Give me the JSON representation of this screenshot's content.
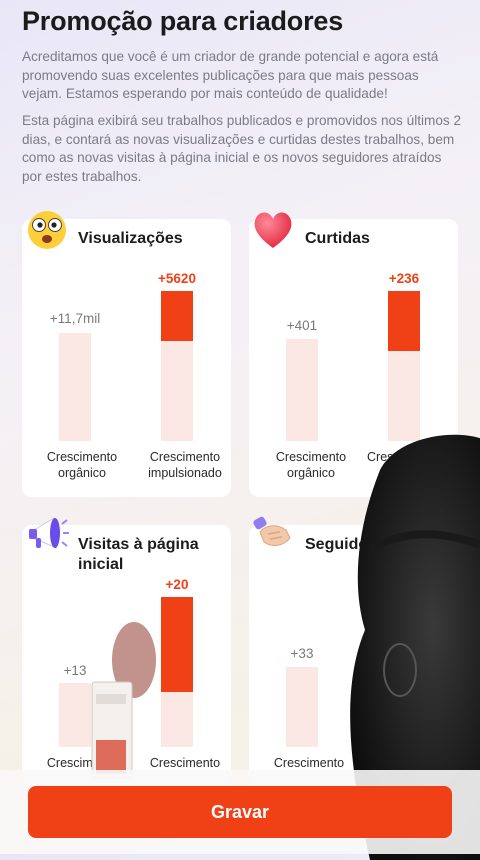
{
  "page": {
    "title": "Promoção para criadores",
    "desc1": "Acreditamos que você é um criador de grande potencial e agora está promovendo suas excelentes publicações para que mais pessoas vejam. Estamos esperando por mais conteúdo de qualidade!",
    "desc2": "Esta página exibirá seu trabalhos publicados e promovidos nos últimos 2 dias, e contará as novas visualizações e curtidas destes trabalhos, bem como as novas visitas à página inicial e os novos seguidores atraídos por estes trabalhos."
  },
  "cards": {
    "views": {
      "title": "Visualizações",
      "icon": "shocked-face-icon",
      "organic_value": "+11,7mil",
      "boosted_value": "+5620",
      "boosted_fill_fraction": 0.33,
      "organic_label": "Crescimento orgânico",
      "boosted_label": "Crescimento impulsionado"
    },
    "likes": {
      "title": "Curtidas",
      "icon": "heart-icon",
      "organic_value": "+401",
      "boosted_value": "+236",
      "boosted_fill_fraction": 0.4,
      "organic_label": "Crescimento orgânico",
      "boosted_label": "Cresci"
    },
    "profile_visits": {
      "title": "Visitas à página inicial",
      "icon": "megaphone-icon",
      "organic_value": "+13",
      "boosted_value": "+20",
      "boosted_fill_fraction": 0.63,
      "organic_label": "Crescimento",
      "boosted_label": "Crescimento"
    },
    "followers": {
      "title": "Seguido",
      "icon": "handshake-icon",
      "organic_value": "+33",
      "organic_label": "Crescimento"
    }
  },
  "actions": {
    "record_label": "Gravar"
  },
  "colors": {
    "accent": "#f04016",
    "bar_bg": "#fbe8e4"
  }
}
